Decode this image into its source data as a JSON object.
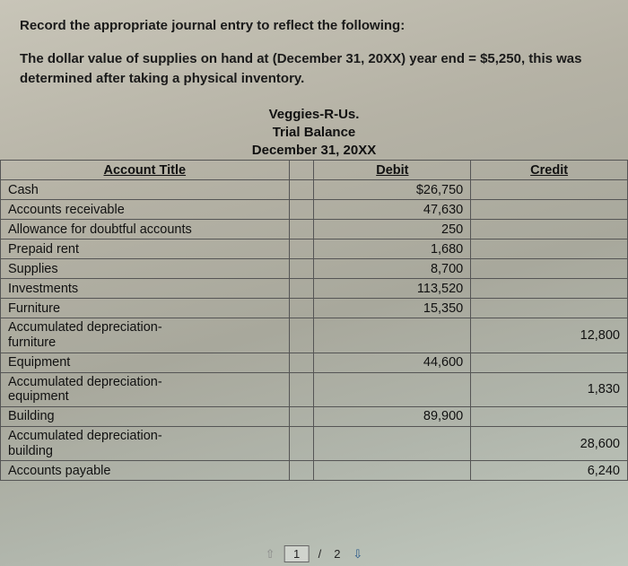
{
  "intro": {
    "line1": "Record the appropriate journal entry to reflect the following:",
    "line2": "The dollar value of supplies on hand at (December 31, 20XX) year end = $5,250, this was determined after taking a physical inventory."
  },
  "trial_balance": {
    "company": "Veggies-R-Us.",
    "title": "Trial Balance",
    "date": "December 31, 20XX",
    "columns": {
      "account": "Account Title",
      "debit": "Debit",
      "credit": "Credit"
    },
    "rows": [
      {
        "account": "Cash",
        "debit": "$26,750",
        "credit": ""
      },
      {
        "account": "Accounts receivable",
        "debit": "47,630",
        "credit": ""
      },
      {
        "account": "Allowance for doubtful accounts",
        "debit": "250",
        "credit": ""
      },
      {
        "account": "Prepaid rent",
        "debit": "1,680",
        "credit": ""
      },
      {
        "account": "Supplies",
        "debit": "8,700",
        "credit": ""
      },
      {
        "account": "Investments",
        "debit": "113,520",
        "credit": ""
      },
      {
        "account": "Furniture",
        "debit": "15,350",
        "credit": ""
      },
      {
        "account": "Accumulated depreciation-\nfurniture",
        "debit": "",
        "credit": "12,800"
      },
      {
        "account": "Equipment",
        "debit": "44,600",
        "credit": ""
      },
      {
        "account": "Accumulated depreciation-\nequipment",
        "debit": "",
        "credit": "1,830"
      },
      {
        "account": "Building",
        "debit": "89,900",
        "credit": ""
      },
      {
        "account": "Accumulated depreciation-\nbuilding",
        "debit": "",
        "credit": "28,600"
      },
      {
        "account": "Accounts payable",
        "debit": "",
        "credit": "6,240"
      }
    ]
  },
  "pager": {
    "current": "1",
    "sep": "/",
    "total": "2"
  }
}
